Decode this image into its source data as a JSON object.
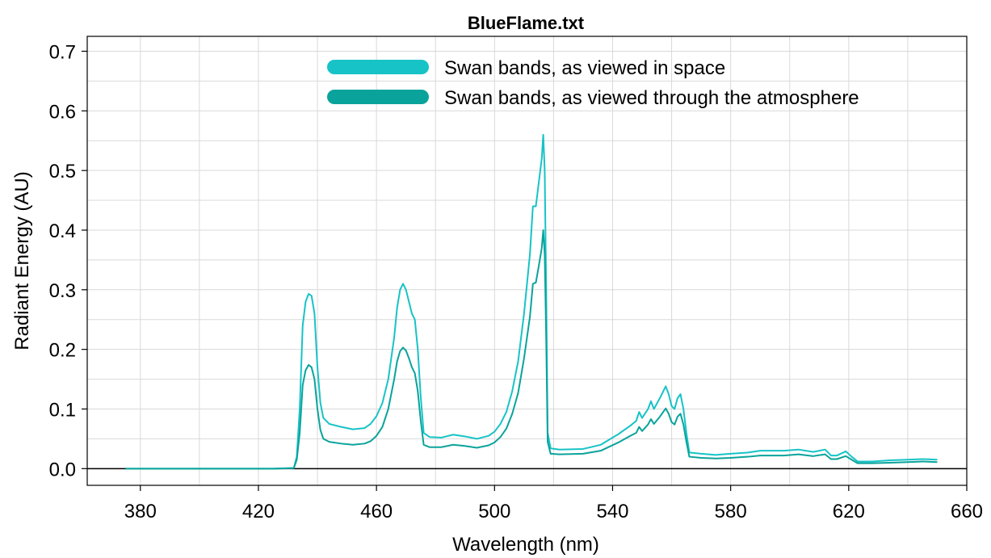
{
  "chart_data": {
    "type": "line",
    "title": "BlueFlame.txt",
    "xlabel": "Wavelength (nm)",
    "ylabel": "Radiant Energy (AU)",
    "xlim": [
      362,
      660
    ],
    "ylim": [
      -0.028,
      0.725
    ],
    "xticks": [
      380,
      420,
      460,
      500,
      540,
      580,
      620,
      660
    ],
    "yticks": [
      0.0,
      0.1,
      0.2,
      0.3,
      0.4,
      0.5,
      0.6,
      0.7
    ],
    "ytick_labels": [
      "0.0",
      "0.1",
      "0.2",
      "0.3",
      "0.4",
      "0.5",
      "0.6",
      "0.7"
    ],
    "grid": true,
    "legend_position": "top-center",
    "series": [
      {
        "name": "Swan bands, as viewed in space",
        "color": "#17c3c6",
        "points": [
          [
            375,
            0.0
          ],
          [
            400,
            0.0
          ],
          [
            425,
            0.0
          ],
          [
            432,
            0.001
          ],
          [
            433,
            0.02
          ],
          [
            434,
            0.1
          ],
          [
            435,
            0.24
          ],
          [
            436,
            0.28
          ],
          [
            437,
            0.293
          ],
          [
            438,
            0.29
          ],
          [
            439,
            0.26
          ],
          [
            440,
            0.17
          ],
          [
            441,
            0.11
          ],
          [
            442,
            0.085
          ],
          [
            444,
            0.075
          ],
          [
            448,
            0.07
          ],
          [
            452,
            0.066
          ],
          [
            456,
            0.068
          ],
          [
            458,
            0.075
          ],
          [
            460,
            0.088
          ],
          [
            462,
            0.11
          ],
          [
            464,
            0.15
          ],
          [
            466,
            0.22
          ],
          [
            467,
            0.27
          ],
          [
            468,
            0.3
          ],
          [
            469,
            0.31
          ],
          [
            470,
            0.3
          ],
          [
            471,
            0.28
          ],
          [
            472,
            0.26
          ],
          [
            473,
            0.25
          ],
          [
            474,
            0.2
          ],
          [
            475,
            0.12
          ],
          [
            476,
            0.06
          ],
          [
            478,
            0.053
          ],
          [
            482,
            0.052
          ],
          [
            486,
            0.057
          ],
          [
            490,
            0.054
          ],
          [
            494,
            0.05
          ],
          [
            498,
            0.055
          ],
          [
            500,
            0.062
          ],
          [
            502,
            0.075
          ],
          [
            504,
            0.095
          ],
          [
            506,
            0.13
          ],
          [
            508,
            0.18
          ],
          [
            510,
            0.26
          ],
          [
            512,
            0.36
          ],
          [
            513,
            0.44
          ],
          [
            514,
            0.44
          ],
          [
            515,
            0.48
          ],
          [
            516,
            0.52
          ],
          [
            516.5,
            0.56
          ],
          [
            517,
            0.5
          ],
          [
            517.5,
            0.3
          ],
          [
            518,
            0.06
          ],
          [
            519,
            0.034
          ],
          [
            522,
            0.032
          ],
          [
            530,
            0.033
          ],
          [
            536,
            0.04
          ],
          [
            542,
            0.058
          ],
          [
            546,
            0.072
          ],
          [
            548,
            0.08
          ],
          [
            549,
            0.095
          ],
          [
            550,
            0.085
          ],
          [
            552,
            0.1
          ],
          [
            553,
            0.113
          ],
          [
            554,
            0.1
          ],
          [
            556,
            0.118
          ],
          [
            557,
            0.128
          ],
          [
            558,
            0.138
          ],
          [
            559,
            0.125
          ],
          [
            560,
            0.105
          ],
          [
            561,
            0.1
          ],
          [
            562,
            0.118
          ],
          [
            563,
            0.125
          ],
          [
            564,
            0.1
          ],
          [
            565,
            0.06
          ],
          [
            566,
            0.027
          ],
          [
            570,
            0.025
          ],
          [
            575,
            0.023
          ],
          [
            580,
            0.025
          ],
          [
            586,
            0.027
          ],
          [
            590,
            0.03
          ],
          [
            598,
            0.03
          ],
          [
            603,
            0.032
          ],
          [
            608,
            0.028
          ],
          [
            612,
            0.032
          ],
          [
            614,
            0.022
          ],
          [
            616,
            0.022
          ],
          [
            619,
            0.029
          ],
          [
            621,
            0.02
          ],
          [
            623,
            0.012
          ],
          [
            628,
            0.012
          ],
          [
            634,
            0.014
          ],
          [
            640,
            0.015
          ],
          [
            645,
            0.016
          ],
          [
            650,
            0.015
          ]
        ]
      },
      {
        "name": "Swan bands, as viewed through the atmosphere",
        "color": "#0aa39b",
        "points": [
          [
            375,
            0.0
          ],
          [
            400,
            0.0
          ],
          [
            425,
            0.0
          ],
          [
            432,
            0.001
          ],
          [
            433,
            0.015
          ],
          [
            434,
            0.06
          ],
          [
            435,
            0.14
          ],
          [
            436,
            0.165
          ],
          [
            437,
            0.174
          ],
          [
            438,
            0.17
          ],
          [
            439,
            0.15
          ],
          [
            440,
            0.1
          ],
          [
            441,
            0.065
          ],
          [
            442,
            0.05
          ],
          [
            444,
            0.045
          ],
          [
            448,
            0.042
          ],
          [
            452,
            0.04
          ],
          [
            456,
            0.042
          ],
          [
            458,
            0.046
          ],
          [
            460,
            0.055
          ],
          [
            462,
            0.07
          ],
          [
            464,
            0.1
          ],
          [
            466,
            0.15
          ],
          [
            467,
            0.18
          ],
          [
            468,
            0.197
          ],
          [
            469,
            0.203
          ],
          [
            470,
            0.198
          ],
          [
            471,
            0.185
          ],
          [
            472,
            0.17
          ],
          [
            473,
            0.16
          ],
          [
            474,
            0.13
          ],
          [
            475,
            0.08
          ],
          [
            476,
            0.04
          ],
          [
            478,
            0.036
          ],
          [
            482,
            0.036
          ],
          [
            486,
            0.04
          ],
          [
            490,
            0.038
          ],
          [
            494,
            0.035
          ],
          [
            498,
            0.039
          ],
          [
            500,
            0.044
          ],
          [
            502,
            0.053
          ],
          [
            504,
            0.067
          ],
          [
            506,
            0.092
          ],
          [
            508,
            0.127
          ],
          [
            510,
            0.185
          ],
          [
            512,
            0.255
          ],
          [
            513,
            0.31
          ],
          [
            514,
            0.312
          ],
          [
            515,
            0.34
          ],
          [
            516,
            0.37
          ],
          [
            516.5,
            0.4
          ],
          [
            517,
            0.36
          ],
          [
            517.5,
            0.22
          ],
          [
            518,
            0.045
          ],
          [
            519,
            0.025
          ],
          [
            522,
            0.024
          ],
          [
            530,
            0.025
          ],
          [
            536,
            0.03
          ],
          [
            542,
            0.044
          ],
          [
            546,
            0.055
          ],
          [
            548,
            0.06
          ],
          [
            549,
            0.07
          ],
          [
            550,
            0.063
          ],
          [
            552,
            0.074
          ],
          [
            553,
            0.083
          ],
          [
            554,
            0.075
          ],
          [
            556,
            0.087
          ],
          [
            557,
            0.094
          ],
          [
            558,
            0.101
          ],
          [
            559,
            0.092
          ],
          [
            560,
            0.078
          ],
          [
            561,
            0.074
          ],
          [
            562,
            0.087
          ],
          [
            563,
            0.092
          ],
          [
            564,
            0.074
          ],
          [
            565,
            0.045
          ],
          [
            566,
            0.02
          ],
          [
            570,
            0.018
          ],
          [
            575,
            0.017
          ],
          [
            580,
            0.018
          ],
          [
            586,
            0.02
          ],
          [
            590,
            0.022
          ],
          [
            598,
            0.022
          ],
          [
            603,
            0.024
          ],
          [
            608,
            0.021
          ],
          [
            612,
            0.024
          ],
          [
            614,
            0.016
          ],
          [
            616,
            0.016
          ],
          [
            619,
            0.021
          ],
          [
            621,
            0.015
          ],
          [
            623,
            0.009
          ],
          [
            628,
            0.009
          ],
          [
            634,
            0.01
          ],
          [
            640,
            0.011
          ],
          [
            645,
            0.012
          ],
          [
            650,
            0.011
          ]
        ]
      }
    ]
  }
}
